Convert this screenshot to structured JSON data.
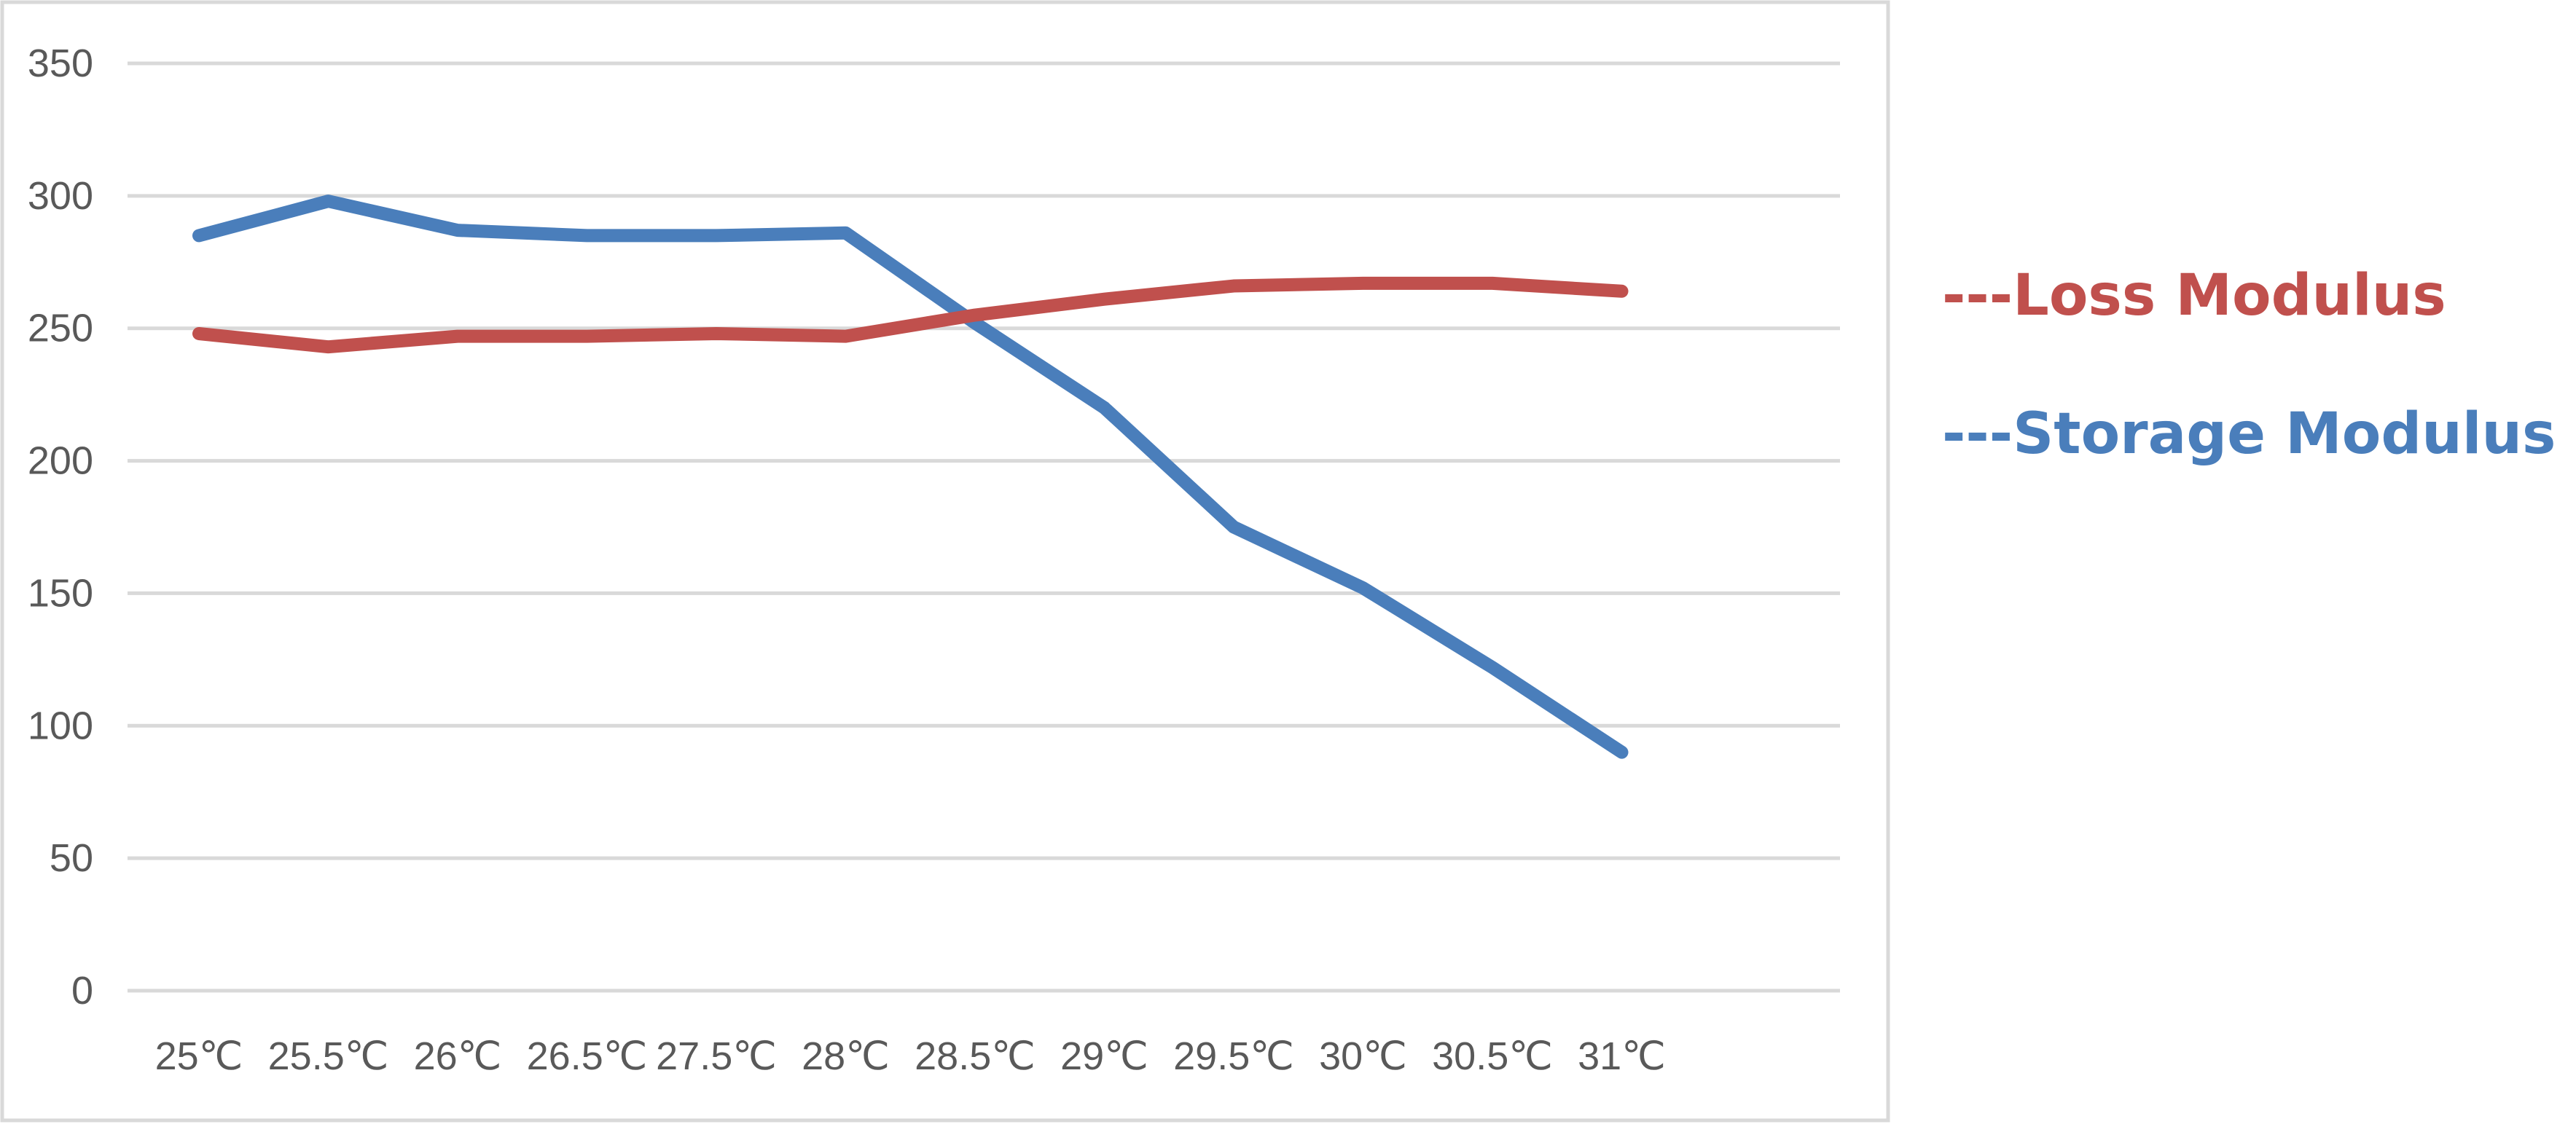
{
  "chart_data": {
    "type": "line",
    "title": "",
    "xlabel": "",
    "ylabel": "",
    "categories": [
      "25℃",
      "25.5℃",
      "26℃",
      "26.5℃",
      "27.5℃",
      "28℃",
      "28.5℃",
      "29℃",
      "29.5℃",
      "30℃",
      "30.5℃",
      "31℃"
    ],
    "y_ticks": [
      "0",
      "50",
      "100",
      "150",
      "200",
      "250",
      "300",
      "350"
    ],
    "ylim": [
      0,
      350
    ],
    "grid": true,
    "legend_position": "right",
    "series": [
      {
        "name": "---Storage Modulus",
        "color": "#4a7ebb",
        "values": [
          285,
          298,
          287,
          285,
          285,
          286,
          252,
          220,
          175,
          152,
          122,
          90
        ]
      },
      {
        "name": "---Loss Modulus",
        "color": "#c0504d",
        "values": [
          248,
          243,
          247,
          247,
          248,
          247,
          255,
          261,
          266,
          267,
          267,
          264
        ]
      }
    ],
    "legend": [
      {
        "label": "---Loss Modulus",
        "color": "#c0504d"
      },
      {
        "label": "---Storage Modulus",
        "color": "#4a7ebb"
      }
    ]
  }
}
